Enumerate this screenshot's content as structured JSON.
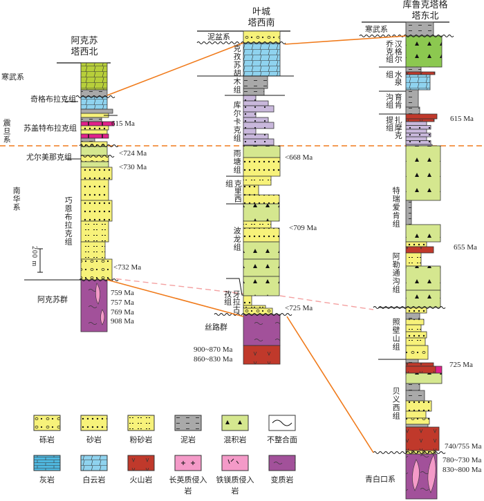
{
  "sections": {
    "aksu": {
      "title_1": "阿克苏",
      "title_2": "塔西北",
      "units": [
        "寒武系",
        "奇格布拉克组",
        "苏盖特布拉克组",
        "震旦系",
        "尤尔美那克组",
        "南华系",
        "巧恩布拉克组",
        "阿克苏群"
      ],
      "ages": [
        "615 Ma",
        "<724 Ma",
        "<730 Ma",
        "<732 Ma",
        "759 Ma",
        "757 Ma",
        "769 Ma",
        "908 Ma"
      ],
      "scale": "200 m"
    },
    "yecheng": {
      "title_1": "叶城",
      "title_2": "塔西南",
      "units": [
        "泥盆系",
        "克孜苏胡木组",
        "库尔卡克组",
        "雨塘组",
        "克里西组",
        "波龙组",
        "牙拉古孜组",
        "丝路群"
      ],
      "ages": [
        "<668 Ma",
        "<709 Ma",
        "<725 Ma",
        "900~870 Ma",
        "860~830 Ma"
      ]
    },
    "quruqtagh": {
      "title_1": "库鲁克塔格",
      "title_2": "塔东北",
      "units": [
        "寒武系",
        "汉格尔乔克组",
        "水泉组",
        "育肯沟组",
        "扎摩克提组",
        "特瑞爱肯组",
        "阿勒通沟组",
        "照壁山组",
        "贝义西组",
        "青白口系"
      ],
      "ages": [
        "615 Ma",
        "655 Ma",
        "725 Ma",
        "740/755 Ma",
        "780~730 Ma",
        "830~800 Ma"
      ]
    }
  },
  "legend": [
    {
      "label": "砾岩",
      "type": "conglomerate"
    },
    {
      "label": "砂岩",
      "type": "sandstone"
    },
    {
      "label": "粉砂岩",
      "type": "siltstone"
    },
    {
      "label": "泥岩",
      "type": "mudstone"
    },
    {
      "label": "混积岩",
      "type": "diamictite"
    },
    {
      "label": "不整合面",
      "type": "unconformity"
    },
    {
      "label": "灰岩",
      "type": "limestone"
    },
    {
      "label": "白云岩",
      "type": "dolomite"
    },
    {
      "label": "火山岩",
      "type": "volcanic"
    },
    {
      "label": "长英质侵入岩",
      "type": "felsic"
    },
    {
      "label": "铁镁质侵入岩",
      "type": "mafic"
    },
    {
      "label": "变质岩",
      "type": "metamorphic"
    }
  ],
  "colors": {
    "sand": "#f7f27a",
    "diamictite": "#d5e78f",
    "dolomite": "#8fd3ef",
    "mud": "#a9a9a9",
    "purple": "#a2519a",
    "red": "#c0392b",
    "orange": "#f07a1a",
    "pinkline": "#f4a0a0",
    "magenta": "#e0228a",
    "lilac": "#c9b8dc",
    "green": "#8cc850"
  }
}
